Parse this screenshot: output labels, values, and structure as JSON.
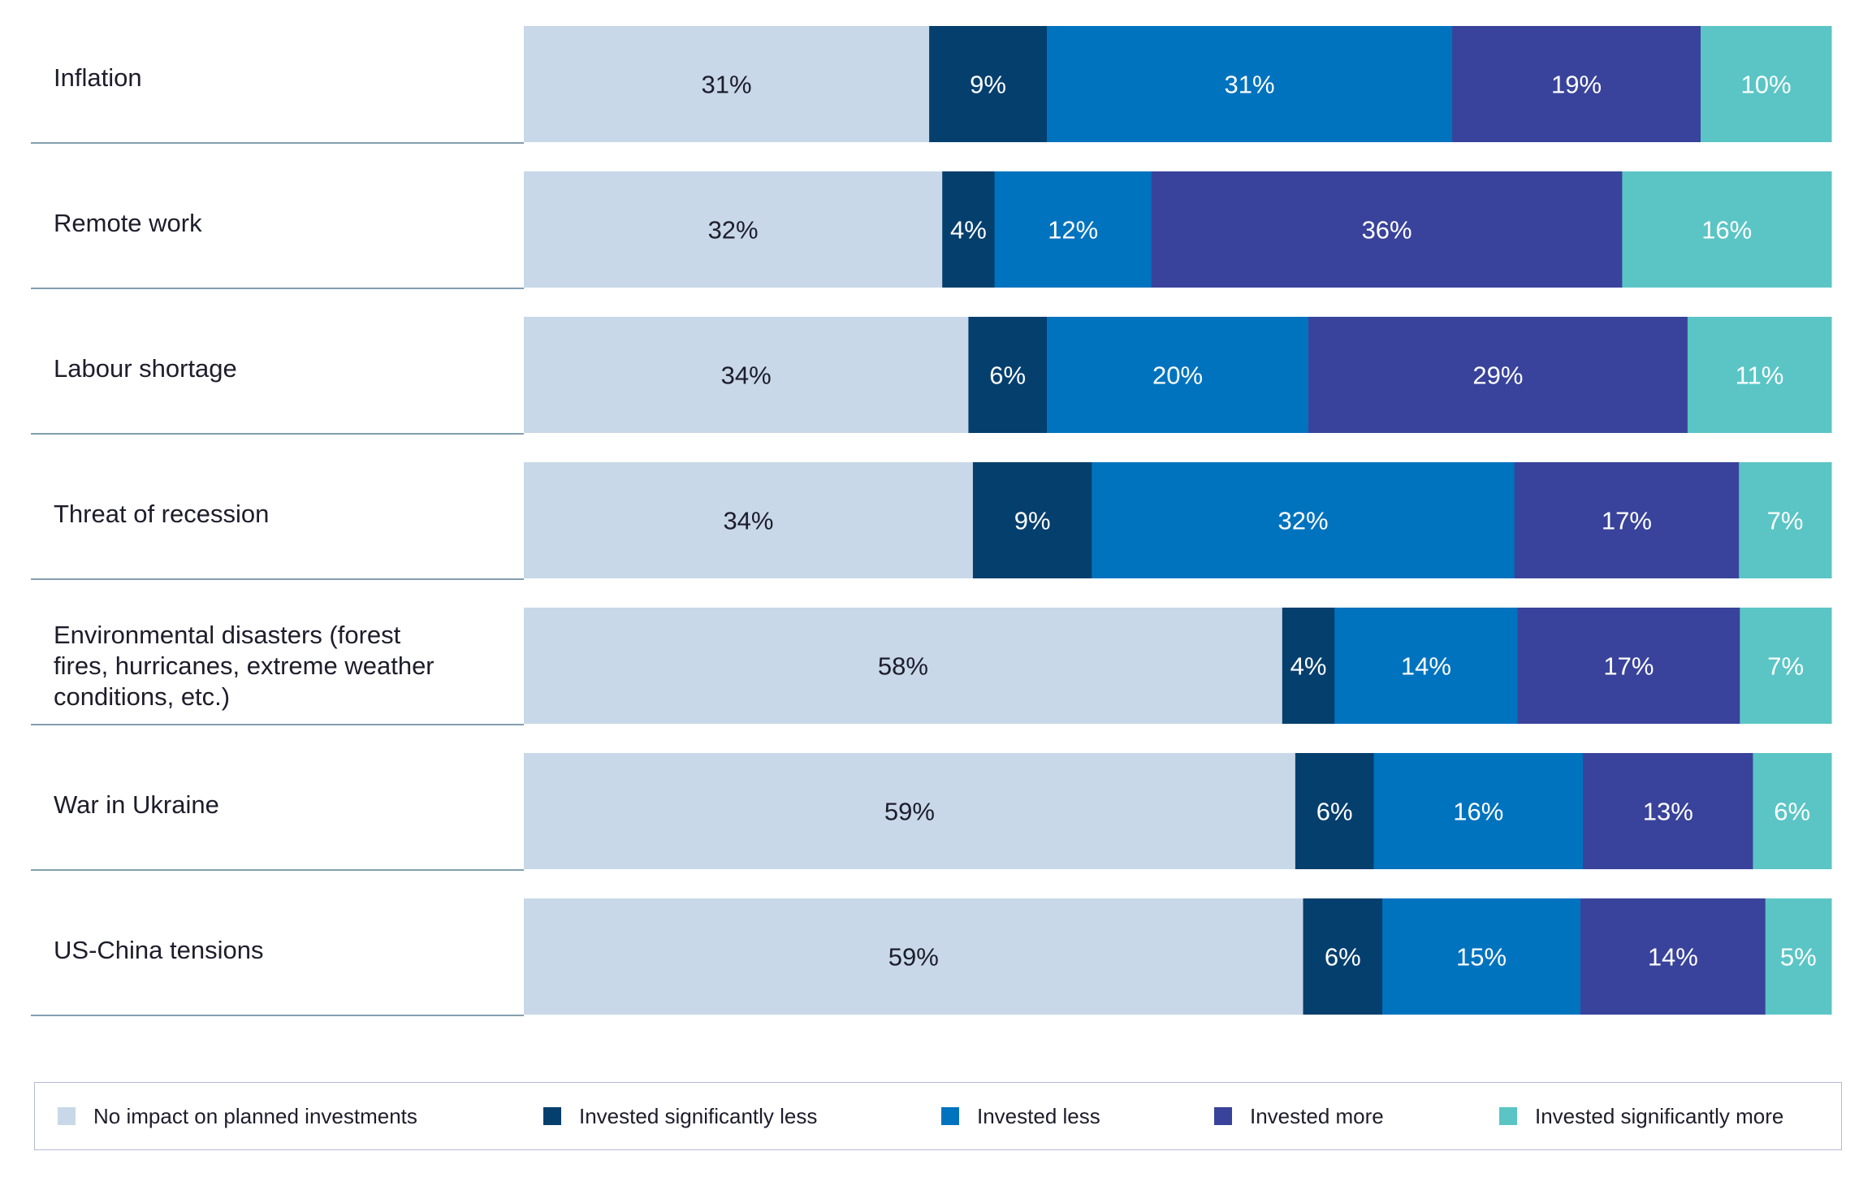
{
  "chart_data": {
    "type": "bar",
    "orientation": "horizontal",
    "stacked": true,
    "title": "",
    "xlabel": "",
    "ylabel": "",
    "categories": [
      "Inflation",
      "Remote work",
      "Labour shortage",
      "Threat of recession",
      "Environmental disasters (forest fires, hurricanes, extreme weather conditions, etc.)",
      "War in Ukraine",
      "US-China tensions"
    ],
    "series": [
      {
        "name": "No impact on planned investments",
        "color": "#c8d8e8",
        "text_color": "#1d1d2b",
        "values": [
          31,
          32,
          34,
          34,
          58,
          59,
          59
        ]
      },
      {
        "name": "Invested significantly less",
        "color": "#053f6e",
        "text_color": "#ffffff",
        "values": [
          9,
          4,
          6,
          9,
          4,
          6,
          6
        ]
      },
      {
        "name": "Invested less",
        "color": "#0073bf",
        "text_color": "#ffffff",
        "values": [
          31,
          12,
          20,
          32,
          14,
          16,
          15
        ]
      },
      {
        "name": "Invested more",
        "color": "#39439b",
        "text_color": "#ffffff",
        "values": [
          19,
          36,
          29,
          17,
          17,
          13,
          14
        ]
      },
      {
        "name": "Invested significantly more",
        "color": "#5bc5c5",
        "text_color": "#ffffff",
        "values": [
          10,
          16,
          11,
          7,
          7,
          6,
          5
        ]
      }
    ],
    "data_label_suffix": "%",
    "legend_position": "bottom",
    "grid": false
  }
}
